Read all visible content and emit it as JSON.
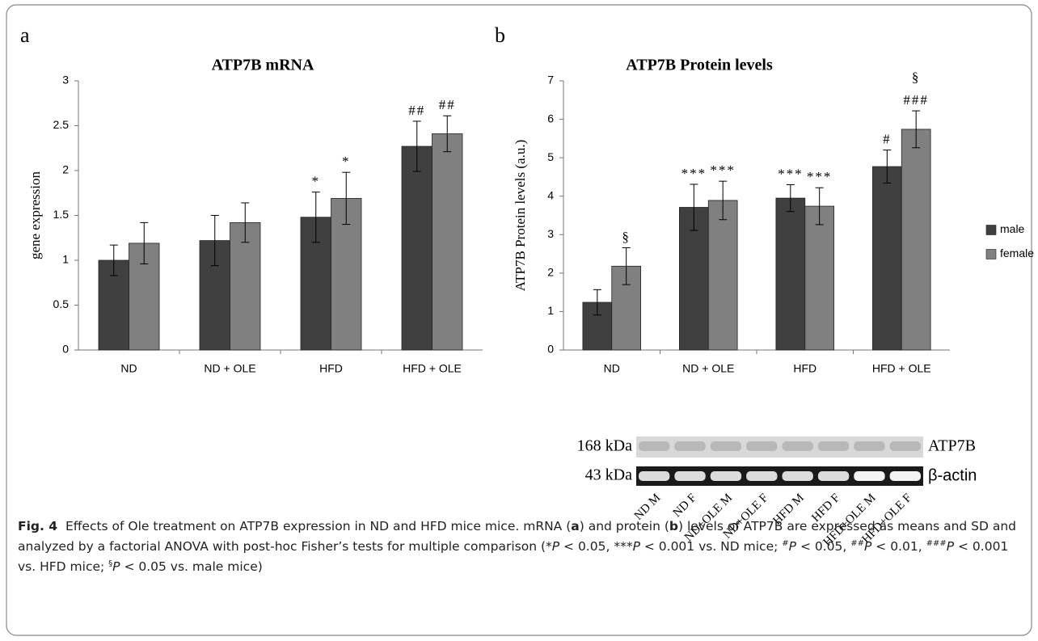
{
  "chart_data": [
    {
      "type": "bar",
      "panel": "a",
      "title": "ATP7B mRNA",
      "y_label": "gene expression",
      "categories": [
        "ND",
        "ND + OLE",
        "HFD",
        "HFD + OLE"
      ],
      "series": [
        {
          "color": "#404040",
          "values": [
            1.0,
            1.22,
            1.48,
            2.27
          ],
          "errors": [
            0.17,
            0.28,
            0.28,
            0.28
          ],
          "annotations": [
            null,
            null,
            [
              "*"
            ],
            [
              "##"
            ]
          ]
        },
        {
          "color": "#808080",
          "values": [
            1.19,
            1.42,
            1.69,
            2.41
          ],
          "errors": [
            0.23,
            0.22,
            0.29,
            0.2
          ],
          "annotations": [
            null,
            null,
            [
              "*"
            ],
            [
              "##"
            ]
          ]
        }
      ],
      "ylim": [
        0,
        3
      ],
      "yticks": [
        0,
        0.5,
        1,
        1.5,
        2,
        2.5,
        3
      ],
      "grid": false
    },
    {
      "type": "bar",
      "panel": "b",
      "title": "ATP7B Protein levels",
      "y_label": "ATP7B Protein levels (a.u.)",
      "categories": [
        "ND",
        "ND + OLE",
        "HFD",
        "HFD + OLE"
      ],
      "series": [
        {
          "name": "male",
          "color": "#404040",
          "values": [
            1.24,
            3.71,
            3.95,
            4.77
          ],
          "errors": [
            0.33,
            0.6,
            0.35,
            0.43
          ],
          "annotations": [
            null,
            [
              "***"
            ],
            [
              "***"
            ],
            [
              "#"
            ]
          ]
        },
        {
          "name": "female",
          "color": "#808080",
          "values": [
            2.18,
            3.89,
            3.74,
            5.74
          ],
          "errors": [
            0.48,
            0.5,
            0.48,
            0.48
          ],
          "annotations": [
            [
              "§"
            ],
            [
              "***"
            ],
            [
              "***"
            ],
            [
              "§",
              "###"
            ]
          ]
        }
      ],
      "ylim": [
        0,
        7
      ],
      "yticks": [
        0,
        1,
        2,
        3,
        4,
        5,
        6,
        7
      ],
      "grid": false,
      "legend": "right"
    }
  ],
  "blot": {
    "rows": [
      {
        "size": "168 kDa",
        "protein": "ATP7B"
      },
      {
        "size": "43 kDa",
        "protein": "β-actin"
      }
    ],
    "lanes": [
      "ND M",
      "ND F",
      "ND+OLE M",
      "ND+OLE F",
      "HFD M",
      "HFD F",
      "HFD+OLE M",
      "HFD+OLE F"
    ]
  },
  "caption": {
    "label": "Fig. 4",
    "parts": [
      "Effects of Ole treatment on ATP7B expression in ND and HFD mice mice. mRNA (",
      "a",
      ") and protein (",
      "b",
      ") levels of ATP7B are expressed as means and SD and analyzed by a factorial ANOVA with post-hoc Fisher’s tests for multiple comparison (*",
      "P",
      " < 0.05, ***",
      "P",
      " < 0.001 vs. ND mice; ",
      "#",
      "P",
      " < 0.05, ",
      "##",
      "P",
      " < 0.01, ",
      "###",
      "P",
      " < 0.001 vs. HFD mice; ",
      "§",
      "P",
      " < 0.05 vs. male mice)"
    ]
  }
}
